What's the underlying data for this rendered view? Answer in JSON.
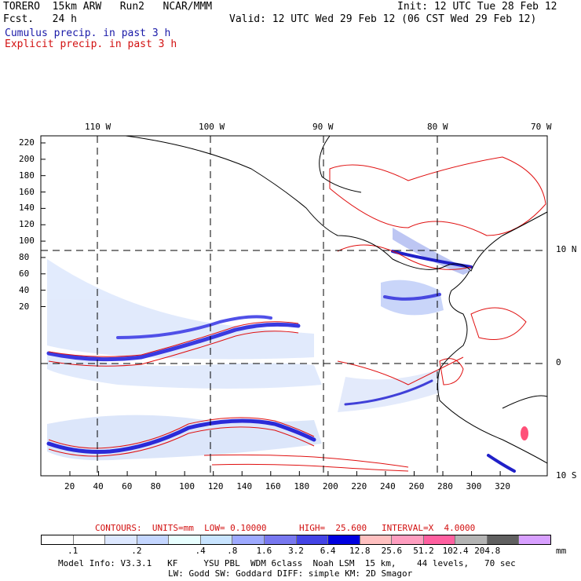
{
  "header": {
    "model": "TORERO  15km ARW   Run2   NCAR/MMM",
    "forecast": "Fcst.   24 h",
    "init": "Init: 12 UTC Tue 28 Feb 12",
    "valid": "Valid: 12 UTC Wed 29 Feb 12 (06 CST Wed 29 Feb 12)",
    "cumulus": "Cumulus precip. in past 3 h",
    "explicit": "Explicit precip. in past 3 h"
  },
  "axes": {
    "top_lon": [
      "110 W",
      "100 W",
      "90 W",
      "80 W",
      "70 W"
    ],
    "right_lat": [
      "10 N",
      "0",
      "10 S"
    ],
    "left_y": [
      "220",
      "200",
      "180",
      "160",
      "140",
      "120",
      "100",
      "80",
      "60",
      "40",
      "20"
    ],
    "bottom_x": [
      "20",
      "40",
      "60",
      "80",
      "100",
      "120",
      "140",
      "160",
      "180",
      "200",
      "220",
      "240",
      "260",
      "280",
      "300",
      "320"
    ]
  },
  "contour_info": {
    "label": "CONTOURS:  UNITS=mm  LOW= 0.10000",
    "high": "HIGH=  25.600",
    "interval": "INTERVAL=X  4.0000"
  },
  "colorbar": {
    "colors": [
      "#ffffff",
      "#ffffff",
      "#dde8ff",
      "#c4d6ff",
      "#e8ffff",
      "#c8e4ff",
      "#9eaaff",
      "#7878f0",
      "#4444e6",
      "#0000e0",
      "#ffc0c0",
      "#ff9ec0",
      "#ff60a0",
      "#b4b4b4",
      "#606060",
      "#d8a0ff"
    ],
    "labels": [
      ".1",
      ".2",
      ".4",
      ".8",
      "1.6",
      "3.2",
      "6.4",
      "12.8",
      "25.6",
      "51.2",
      "102.4",
      "204.8"
    ],
    "unit": "mm"
  },
  "model_info": {
    "line1": "Model Info: V3.3.1   KF     YSU PBL  WDM 6class  Noah LSM  15 km,    44 levels,   70 sec",
    "line2": "LW: Godd SW: Goddard DIFF: simple KM: 2D Smagor"
  }
}
